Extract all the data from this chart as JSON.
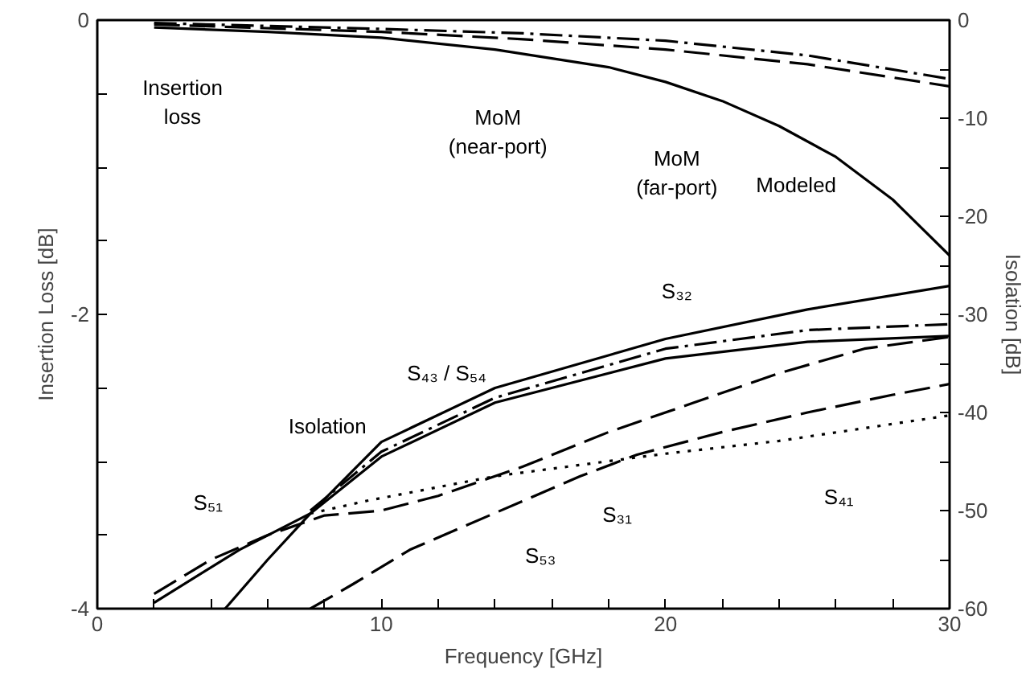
{
  "chart_data": {
    "type": "line",
    "xlabel": "Frequency [GHz]",
    "ylabel": "Insertion Loss [dB]",
    "y2label": "Isolation [dB]",
    "xlim": [
      0,
      30
    ],
    "xticks": [
      0,
      {
        "value": 2,
        "label": null
      },
      {
        "value": 4,
        "label": null
      },
      {
        "value": 6,
        "label": null
      },
      {
        "value": 8,
        "label": null
      },
      10,
      {
        "value": 12,
        "label": null
      },
      {
        "value": 14,
        "label": null
      },
      {
        "value": 16,
        "label": null
      },
      {
        "value": 18,
        "label": null
      },
      20,
      {
        "value": 22,
        "label": null
      },
      {
        "value": 24,
        "label": null
      },
      {
        "value": 26,
        "label": null
      },
      {
        "value": 28,
        "label": null
      },
      30
    ],
    "ylim": [
      -4,
      0
    ],
    "yticks": [
      -4,
      {
        "value": -3.5,
        "label": null
      },
      {
        "value": -3,
        "label": null
      },
      {
        "value": -2.5,
        "label": null
      },
      -2,
      {
        "value": -1.5,
        "label": null
      },
      {
        "value": -1,
        "label": null
      },
      {
        "value": -0.5,
        "label": null
      },
      0
    ],
    "y2lim": [
      -60,
      0
    ],
    "y2ticks": [
      -60,
      {
        "value": -55,
        "label": null
      },
      -50,
      {
        "value": -45,
        "label": null
      },
      -40,
      {
        "value": -35,
        "label": null
      },
      -30,
      {
        "value": -25,
        "label": null
      },
      -20,
      {
        "value": -15,
        "label": null
      },
      -10,
      {
        "value": -5,
        "label": null
      },
      0
    ],
    "grid": false,
    "marker": "none",
    "series": [
      {
        "color": "#000000",
        "line_style": "solid",
        "x": [
          2,
          6,
          10,
          14,
          18,
          20,
          22,
          24,
          26,
          28,
          30
        ],
        "values": [
          -0.05,
          -0.08,
          -0.12,
          -0.2,
          -0.32,
          -0.42,
          -0.55,
          -0.72,
          -0.93,
          -1.22,
          -1.6
        ]
      },
      {
        "color": "#000000",
        "line_style": "dashed",
        "x": [
          2,
          10,
          15,
          20,
          25,
          30
        ],
        "values": [
          -0.03,
          -0.08,
          -0.13,
          -0.2,
          -0.3,
          -0.45
        ]
      },
      {
        "color": "#000000",
        "line_style": "dashdot",
        "x": [
          2,
          10,
          15,
          20,
          25,
          30
        ],
        "values": [
          -0.02,
          -0.06,
          -0.09,
          -0.14,
          -0.24,
          -0.4
        ]
      },
      {
        "color": "#000000",
        "line_style": "solid",
        "axis": "y2",
        "x": [
          4.5,
          6,
          7.5,
          10,
          14,
          20,
          25,
          30
        ],
        "values": [
          -60,
          -55,
          -50.3,
          -43,
          -37.5,
          -32.5,
          -29.5,
          -27.1
        ]
      },
      {
        "color": "#000000",
        "line_style": "solid",
        "axis": "y2",
        "x": [
          2,
          5,
          7.5,
          10,
          14,
          20,
          25,
          30
        ],
        "values": [
          -59.4,
          -54,
          -50.3,
          -44.5,
          -39,
          -34.5,
          -32.8,
          -32.2
        ]
      },
      {
        "color": "#000000",
        "line_style": "dashdot",
        "axis": "y2",
        "x": [
          7.5,
          10,
          14,
          20,
          25,
          30
        ],
        "values": [
          -50,
          -44,
          -38.5,
          -33.5,
          -31.6,
          -31
        ]
      },
      {
        "color": "#000000",
        "line_style": "dotted",
        "axis": "y2",
        "x": [
          7.5,
          9.5,
          14,
          20,
          24,
          30
        ],
        "values": [
          -50.3,
          -49,
          -46.5,
          -44.2,
          -42.9,
          -40.3
        ]
      },
      {
        "color": "#000000",
        "line_style": "dashed",
        "axis": "y2",
        "x": [
          2,
          4,
          6,
          8,
          10,
          12,
          15,
          18,
          21,
          24,
          27,
          30
        ],
        "values": [
          -58.5,
          -55,
          -52.5,
          -50.5,
          -50,
          -48.5,
          -45.5,
          -42,
          -39,
          -36,
          -33.5,
          -32.3
        ]
      },
      {
        "color": "#000000",
        "line_style": "dashed",
        "axis": "y2",
        "x": [
          7.5,
          9,
          11,
          13,
          15,
          17,
          19,
          22,
          25,
          28,
          30
        ],
        "values": [
          -60,
          -57.5,
          -54,
          -51.5,
          -49,
          -46.5,
          -44.3,
          -42,
          -40,
          -38.2,
          -37.1
        ]
      }
    ],
    "annotations": [
      "Insertion\nloss",
      "MoM\n(near-port)",
      "MoM\n(far-port)",
      "Modeled",
      "S₃₂",
      "S₄₃ / S₅₄",
      "Isolation",
      "S₅₁",
      "S₃₁",
      "S₅₃",
      "S₄₁"
    ]
  }
}
